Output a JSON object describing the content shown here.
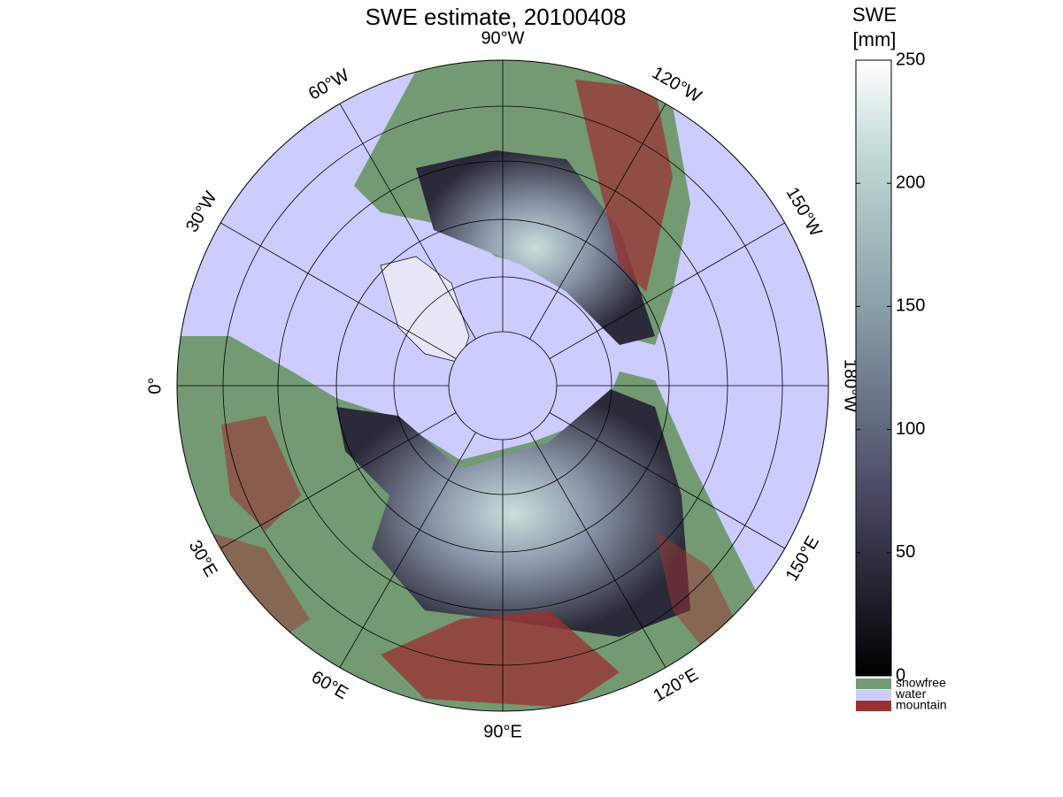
{
  "title": "SWE estimate, 20100408",
  "longitude_labels": [
    "90°W",
    "120°W",
    "150°W",
    "180°W",
    "150°E",
    "120°E",
    "90°E",
    "60°E",
    "30°E",
    "0°",
    "30°W",
    "60°W"
  ],
  "colorbar": {
    "label": [
      "SWE",
      "[mm]"
    ],
    "lim": [
      0,
      250
    ],
    "ticks": [
      0,
      50,
      100,
      150,
      200,
      250
    ]
  },
  "legend": [
    {
      "label": "snowfree",
      "color": "#739a73"
    },
    {
      "label": "water",
      "color": "#ccccff"
    },
    {
      "label": "mountain",
      "color": "#993333"
    }
  ]
}
